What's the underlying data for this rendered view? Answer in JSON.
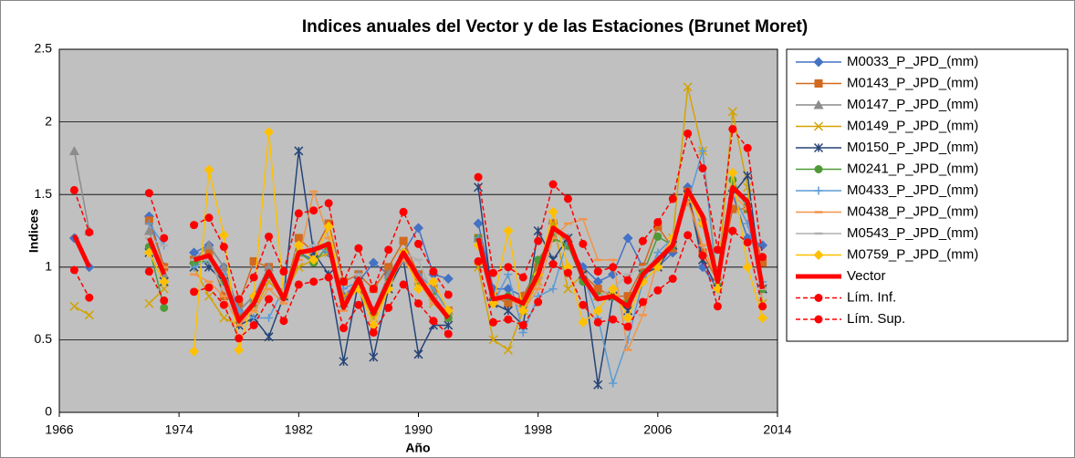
{
  "chart_data": {
    "type": "line",
    "title": "Indices anuales del Vector y de las Estaciones (Brunet Moret)",
    "xlabel": "Año",
    "ylabel": "Indices",
    "xlim": [
      1966,
      2014
    ],
    "xticks": [
      1966,
      1974,
      1982,
      1990,
      1998,
      2006,
      2014
    ],
    "ylim": [
      0,
      2.5
    ],
    "yticks": [
      0,
      {
        "value": 0.5,
        "label": "0.5"
      },
      1,
      {
        "value": 1.5,
        "label": "1.5"
      },
      2,
      {
        "value": 2.5,
        "label": "2.5"
      }
    ],
    "grid": true,
    "legend": "right",
    "x": [
      1967,
      1968,
      1969,
      1970,
      1971,
      1972,
      1973,
      1974,
      1975,
      1976,
      1977,
      1978,
      1979,
      1980,
      1981,
      1982,
      1983,
      1984,
      1985,
      1986,
      1987,
      1988,
      1989,
      1990,
      1991,
      1992,
      1993,
      1994,
      1995,
      1996,
      1997,
      1998,
      1999,
      2000,
      2001,
      2002,
      2003,
      2004,
      2005,
      2006,
      2007,
      2008,
      2009,
      2010,
      2011,
      2012,
      2013
    ],
    "series": [
      {
        "name": "M0033_P_JPD_(mm)",
        "color": "#4472c4",
        "marker": "diamond",
        "width": 1.5,
        "values": [
          1.2,
          1.0,
          null,
          null,
          null,
          1.35,
          1.0,
          null,
          1.1,
          1.15,
          1.0,
          0.7,
          0.8,
          0.95,
          0.8,
          1.1,
          1.05,
          1.1,
          0.8,
          0.9,
          1.03,
          0.95,
          1.1,
          1.27,
          0.95,
          0.92,
          null,
          1.3,
          0.85,
          0.85,
          0.8,
          1.0,
          1.3,
          1.15,
          1.0,
          0.9,
          0.95,
          1.2,
          1.0,
          1.0,
          1.1,
          1.55,
          1.0,
          0.85,
          1.5,
          1.2,
          1.15
        ]
      },
      {
        "name": "M0143_P_JPD_(mm)",
        "color": "#d2691e",
        "marker": "square",
        "width": 1.5,
        "values": [
          null,
          null,
          null,
          null,
          null,
          1.32,
          1.0,
          null,
          1.05,
          1.1,
          0.8,
          0.75,
          1.04,
          1.0,
          0.8,
          1.2,
          1.1,
          1.3,
          0.9,
          0.95,
          0.85,
          1.0,
          1.18,
          0.95,
          0.85,
          0.7,
          null,
          1.2,
          0.8,
          0.75,
          0.8,
          1.0,
          1.3,
          1.15,
          0.95,
          0.85,
          0.8,
          0.8,
          1.0,
          1.28,
          1.13,
          1.52,
          1.1,
          0.9,
          1.4,
          1.4,
          1.03
        ]
      },
      {
        "name": "M0147_P_JPD_(mm)",
        "color": "#8c8c8c",
        "marker": "triangle",
        "width": 1.5,
        "values": [
          1.8,
          1.25,
          null,
          null,
          null,
          1.25,
          0.95,
          null,
          1.05,
          1.15,
          1.0,
          0.7,
          0.8,
          1.0,
          0.8,
          1.1,
          1.1,
          1.15,
          0.75,
          0.95,
          0.7,
          0.95,
          1.1,
          0.95,
          0.8,
          0.7,
          null,
          1.2,
          0.8,
          0.8,
          0.75,
          0.95,
          1.25,
          1.2,
          0.95,
          0.8,
          0.8,
          0.75,
          0.95,
          1.05,
          1.15,
          1.5,
          1.35,
          0.9,
          1.55,
          1.45,
          0.85
        ]
      },
      {
        "name": "M0149_P_JPD_(mm)",
        "color": "#d4a300",
        "marker": "x",
        "width": 1.5,
        "values": [
          0.73,
          0.67,
          null,
          null,
          null,
          0.75,
          0.85,
          null,
          1.0,
          0.8,
          0.65,
          0.6,
          0.7,
          0.9,
          0.8,
          1.0,
          1.05,
          1.1,
          0.8,
          0.85,
          0.65,
          0.85,
          1.05,
          0.9,
          0.75,
          0.65,
          null,
          1.0,
          0.5,
          0.43,
          0.7,
          0.9,
          1.3,
          0.85,
          0.95,
          0.8,
          0.8,
          0.75,
          0.95,
          1.0,
          1.2,
          2.24,
          1.8,
          0.9,
          2.07,
          1.55,
          0.75
        ]
      },
      {
        "name": "M0150_P_JPD_(mm)",
        "color": "#264478",
        "marker": "star",
        "width": 1.5,
        "values": [
          null,
          null,
          null,
          null,
          null,
          1.1,
          0.9,
          null,
          1.0,
          1.0,
          0.9,
          0.6,
          0.65,
          0.52,
          0.8,
          1.8,
          1.1,
          0.95,
          0.35,
          0.9,
          0.38,
          0.85,
          1.05,
          0.4,
          0.6,
          0.6,
          null,
          1.55,
          0.75,
          0.7,
          0.6,
          1.25,
          1.05,
          1.2,
          0.95,
          0.19,
          0.8,
          0.7,
          0.95,
          1.0,
          1.15,
          1.5,
          1.05,
          0.85,
          1.5,
          1.63,
          0.85
        ]
      },
      {
        "name": "M0241_P_JPD_(mm)",
        "color": "#4e9a36",
        "marker": "circle",
        "width": 1.5,
        "values": [
          null,
          null,
          null,
          null,
          null,
          1.14,
          0.72,
          null,
          1.03,
          1.05,
          0.9,
          0.65,
          0.75,
          0.95,
          0.8,
          1.1,
          1.03,
          1.15,
          0.75,
          0.9,
          0.7,
          0.9,
          1.1,
          0.9,
          0.8,
          0.65,
          null,
          1.2,
          0.8,
          0.8,
          0.75,
          1.05,
          1.2,
          1.15,
          0.9,
          0.8,
          0.8,
          0.75,
          0.95,
          1.21,
          1.15,
          1.5,
          1.3,
          0.9,
          1.6,
          1.4,
          0.85
        ]
      },
      {
        "name": "M0433_P_JPD_(mm)",
        "color": "#5b9bd5",
        "marker": "plus",
        "width": 1.5,
        "values": [
          null,
          null,
          null,
          null,
          null,
          1.3,
          1.15,
          null,
          1.0,
          1.05,
          0.95,
          0.7,
          0.65,
          0.65,
          0.85,
          1.1,
          1.15,
          1.1,
          0.85,
          0.9,
          0.7,
          0.9,
          1.05,
          0.95,
          0.85,
          0.7,
          null,
          1.2,
          0.75,
          0.95,
          0.55,
          0.8,
          0.85,
          1.2,
          0.95,
          0.65,
          0.2,
          0.5,
          0.9,
          1.1,
          1.2,
          1.45,
          1.8,
          0.85,
          1.5,
          1.3,
          0.9
        ]
      },
      {
        "name": "M0438_P_JPD_(mm)",
        "color": "#f0954a",
        "marker": "dash",
        "width": 1.5,
        "values": [
          null,
          null,
          null,
          null,
          null,
          1.2,
          1.0,
          null,
          0.95,
          0.9,
          0.8,
          0.6,
          0.7,
          0.85,
          0.75,
          1.05,
          1.52,
          1.2,
          0.7,
          0.9,
          0.7,
          0.9,
          1.05,
          0.9,
          0.75,
          0.7,
          null,
          1.15,
          0.75,
          0.8,
          0.7,
          0.85,
          1.2,
          1.3,
          1.33,
          1.05,
          1.05,
          0.43,
          0.67,
          1.05,
          1.2,
          1.45,
          1.15,
          0.9,
          1.5,
          1.4,
          0.85
        ]
      },
      {
        "name": "M0543_P_JPD_(mm)",
        "color": "#b0b0b0",
        "marker": "dash",
        "width": 1.5,
        "values": [
          null,
          null,
          null,
          null,
          null,
          1.2,
          1.15,
          null,
          1.05,
          1.05,
          0.85,
          0.65,
          0.75,
          0.95,
          0.8,
          1.1,
          1.15,
          1.15,
          0.75,
          0.95,
          0.7,
          0.9,
          1.1,
          1.05,
          0.8,
          0.7,
          null,
          1.15,
          0.8,
          0.8,
          0.75,
          0.95,
          1.25,
          1.2,
          0.95,
          0.8,
          0.85,
          0.95,
          1.0,
          1.05,
          1.15,
          1.5,
          1.3,
          0.9,
          1.5,
          1.45,
          0.85
        ]
      },
      {
        "name": "M0759_P_JPD_(mm)",
        "color": "#ffc000",
        "marker": "diamond",
        "width": 1.5,
        "values": [
          null,
          null,
          null,
          null,
          null,
          1.1,
          0.9,
          null,
          0.42,
          1.67,
          1.22,
          0.43,
          0.8,
          1.93,
          0.8,
          1.15,
          1.05,
          1.28,
          0.75,
          0.85,
          0.6,
          0.85,
          1.1,
          0.85,
          0.9,
          0.7,
          null,
          1.15,
          0.75,
          1.25,
          0.7,
          0.95,
          1.38,
          1.0,
          0.62,
          0.7,
          0.85,
          0.65,
          0.9,
          1.0,
          1.2,
          1.5,
          1.3,
          0.85,
          1.65,
          1.0,
          0.65
        ]
      },
      {
        "name": "Vector",
        "color": "#ff0000",
        "marker": "none",
        "width": 5,
        "values": [
          1.22,
          1.0,
          null,
          null,
          null,
          1.2,
          0.95,
          null,
          1.05,
          1.08,
          0.92,
          0.63,
          0.75,
          0.97,
          0.78,
          1.1,
          1.12,
          1.16,
          0.72,
          0.92,
          0.68,
          0.9,
          1.1,
          0.93,
          0.78,
          0.65,
          null,
          1.2,
          0.78,
          0.8,
          0.75,
          0.95,
          1.27,
          1.2,
          0.93,
          0.78,
          0.8,
          0.73,
          0.95,
          1.05,
          1.15,
          1.53,
          1.35,
          0.9,
          1.55,
          1.45,
          0.85
        ]
      },
      {
        "name": "Lím. Inf.",
        "color": "#ff0000",
        "marker": "circle",
        "dashed": true,
        "width": 1.5,
        "values": [
          0.98,
          0.79,
          null,
          null,
          null,
          0.97,
          0.77,
          null,
          0.83,
          0.86,
          0.74,
          0.51,
          0.6,
          0.78,
          0.63,
          0.88,
          0.9,
          0.93,
          0.58,
          0.74,
          0.55,
          0.72,
          0.88,
          0.75,
          0.63,
          0.54,
          null,
          1.04,
          0.62,
          0.64,
          0.6,
          0.76,
          1.02,
          0.96,
          0.74,
          0.62,
          0.64,
          0.59,
          0.76,
          0.84,
          0.92,
          1.22,
          1.08,
          0.73,
          1.25,
          1.17,
          0.73
        ]
      },
      {
        "name": "Lím. Sup.",
        "color": "#ff0000",
        "marker": "circle",
        "dashed": true,
        "width": 1.5,
        "values": [
          1.53,
          1.24,
          null,
          null,
          null,
          1.51,
          1.2,
          null,
          1.29,
          1.34,
          1.14,
          0.78,
          0.93,
          1.21,
          0.97,
          1.37,
          1.39,
          1.44,
          0.9,
          1.13,
          0.85,
          1.12,
          1.38,
          1.16,
          0.97,
          0.81,
          null,
          1.62,
          0.96,
          1.0,
          0.93,
          1.18,
          1.57,
          1.47,
          1.16,
          0.97,
          1.0,
          0.91,
          1.18,
          1.31,
          1.47,
          1.92,
          1.68,
          1.12,
          1.95,
          1.82,
          1.07
        ]
      }
    ]
  }
}
